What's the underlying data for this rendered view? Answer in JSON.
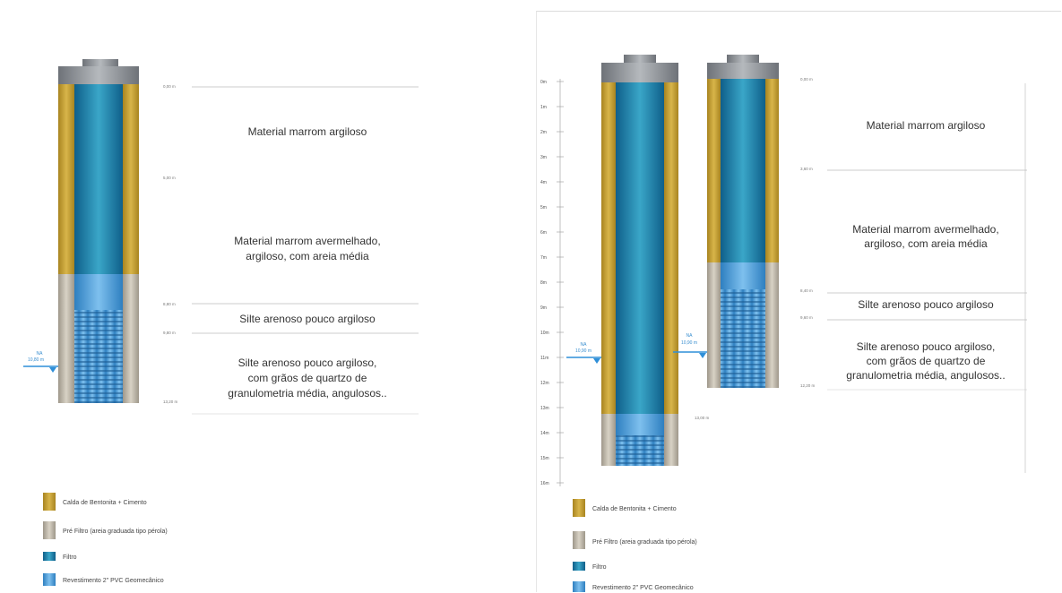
{
  "colors": {
    "bentonite": "#C9A23A",
    "prefilter": "#BDB5A6",
    "filter": "#1E79A6",
    "casing": "#4E9BD6",
    "cap": "#8B8F94",
    "water": "#2F8FD8"
  },
  "left": {
    "depth_labels": [
      "0,00 m",
      "5,00 m",
      "8,80 m",
      "9,80 m",
      "13,20 m"
    ],
    "layers": [
      [
        "Material marrom argiloso"
      ],
      [
        "Material marrom avermelhado,",
        "argiloso, com areia média"
      ],
      [
        "Silte arenoso pouco argiloso"
      ],
      [
        "Silte arenoso pouco argiloso,",
        "com grãos de quartzo de",
        "granulometria média, angulosos.."
      ]
    ],
    "na_label": [
      "NA",
      "10,80 m"
    ]
  },
  "right": {
    "scale": [
      "0m",
      "1m",
      "2m",
      "3m",
      "4m",
      "5m",
      "6m",
      "7m",
      "8m",
      "9m",
      "10m",
      "11m",
      "12m",
      "13m",
      "14m",
      "15m",
      "16m"
    ],
    "depth_labels": [
      "0,00 m",
      "3,60 m",
      "8,40 m",
      "9,60 m",
      "12,20 m"
    ],
    "bottom_label": "13,00 m",
    "na_label_a": [
      "NA",
      "10,90 m"
    ],
    "na_label_b": [
      "NA",
      "10,90 m"
    ],
    "layers": [
      [
        "Material marrom argiloso"
      ],
      [
        "Material marrom avermelhado,",
        "argiloso, com areia média"
      ],
      [
        "Silte arenoso pouco argiloso"
      ],
      [
        "Silte arenoso pouco argiloso,",
        "com grãos de quartzo de",
        "granulometria média, angulosos.."
      ]
    ]
  },
  "legend": [
    "Calda de Bentonita + Cimento",
    "Pré Filtro (areia graduada tipo pérola)",
    "Filtro",
    "Revestimento 2\" PVC Geomecânico"
  ]
}
